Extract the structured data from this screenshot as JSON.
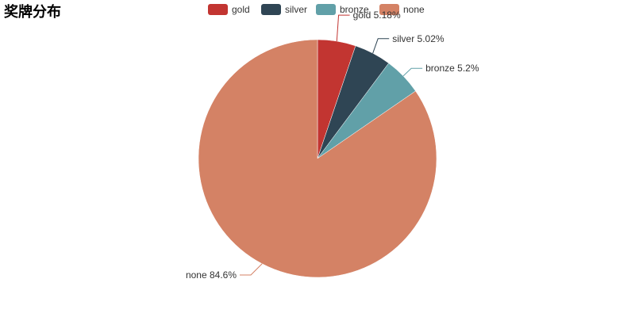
{
  "chart_data": {
    "type": "pie",
    "title": "奖牌分布",
    "legend_position": "top-center",
    "series": [
      {
        "name": "gold",
        "percent": 5.18,
        "label": "gold 5.18%",
        "color": "#c23531"
      },
      {
        "name": "silver",
        "percent": 5.02,
        "label": "silver 5.02%",
        "color": "#2f4554"
      },
      {
        "name": "bronze",
        "percent": 5.2,
        "label": "bronze 5.2%",
        "color": "#61a0a8"
      },
      {
        "name": "none",
        "percent": 84.6,
        "label": "none 84.6%",
        "color": "#d48265"
      }
    ]
  }
}
